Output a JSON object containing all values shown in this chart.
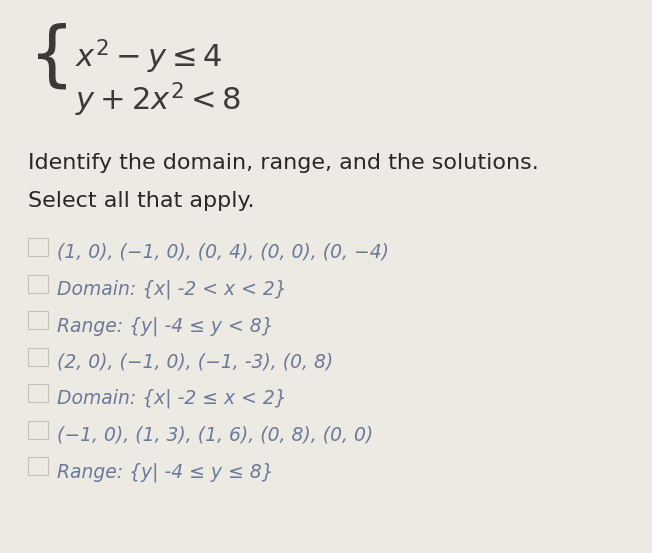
{
  "bg_color": "#edeae3",
  "text_color": "#3d3a35",
  "option_text_color": "#6b7a99",
  "instruction_color": "#2a2825",
  "checkbox_color": "#c5c2bc",
  "options": [
    "(1, 0), (−1, 0), (0, 4), (0, 0), (0, −4)",
    "Domain: {x| -2 < x < 2}",
    "Range: {y| -4 ≤ y < 8}",
    "(2, 0), (−1, 0), (−1, -3), (0, 8)",
    "Domain: {x| -2 ≤ x < 2}",
    "(−1, 0), (1, 3), (1, 6), (0, 8), (0, 0)",
    "Range: {y| -4 ≤ y ≤ 8}"
  ],
  "system_font_size": 22,
  "instruction_font_size": 16,
  "option_font_size": 13.5,
  "figsize": [
    6.52,
    5.53
  ],
  "dpi": 100
}
